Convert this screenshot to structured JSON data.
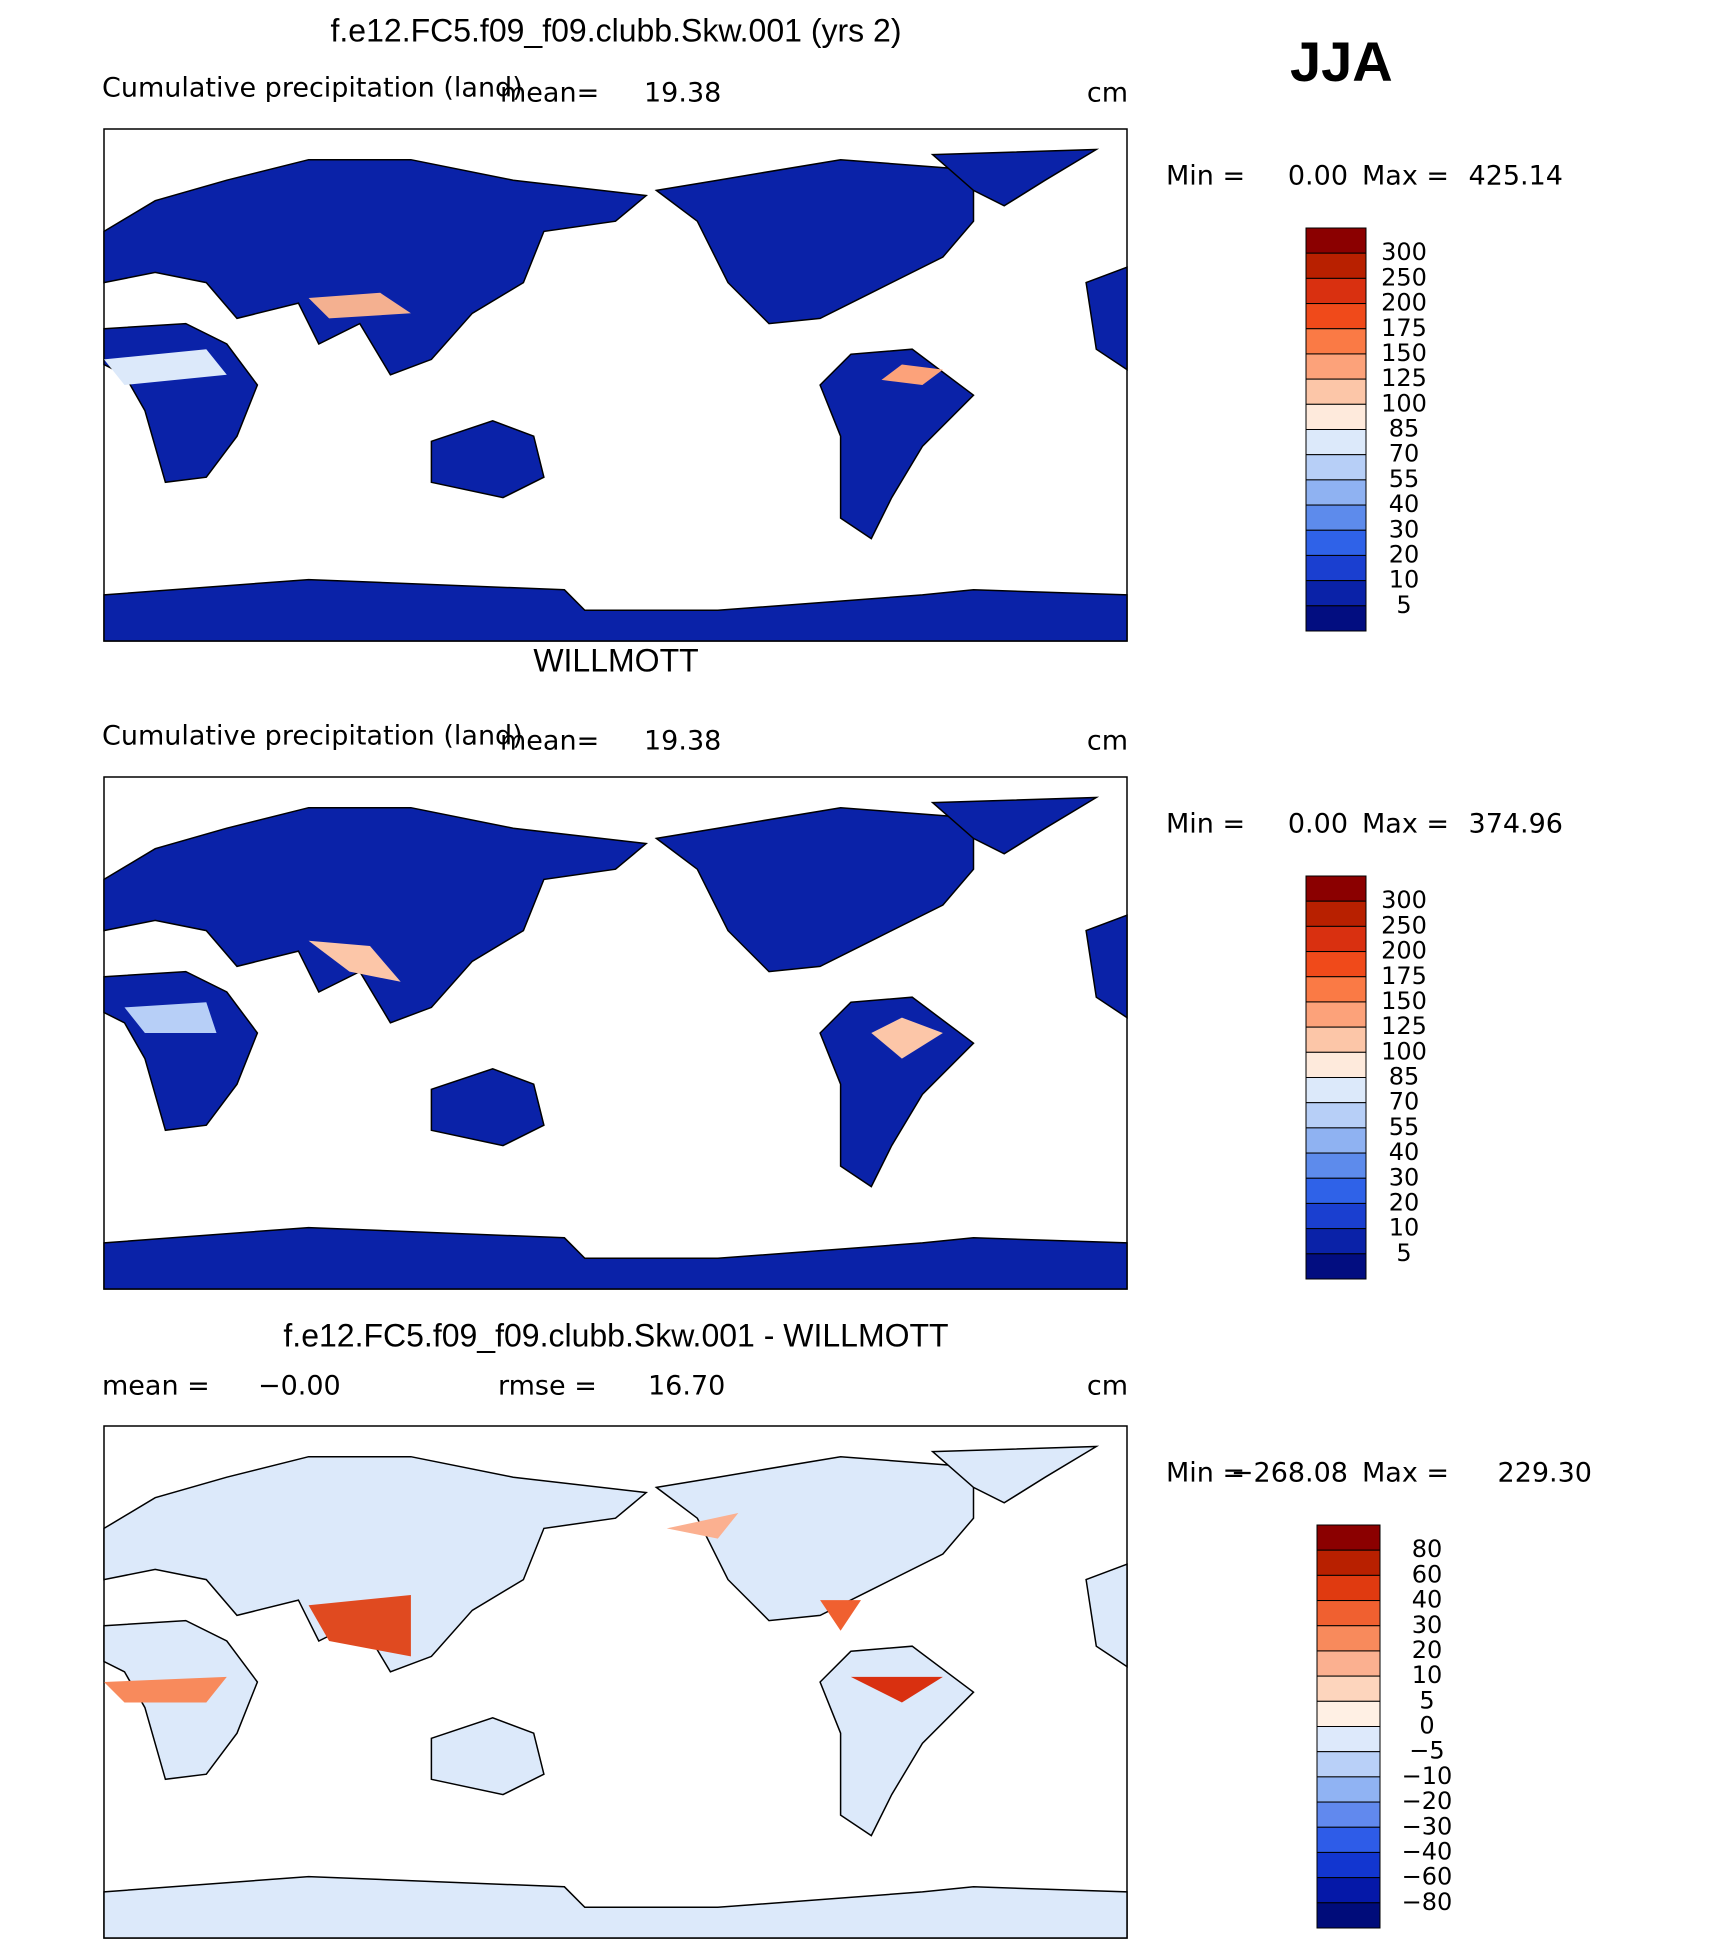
{
  "header": {
    "season": "JJA"
  },
  "panels": [
    {
      "title": "f.e12.FC5.f09_f09.clubb.Skw.001 (yrs 2)",
      "subtitle": "Cumulative precipitation (land)",
      "mean_label": "mean=",
      "mean": "19.38",
      "unit": "cm",
      "min_label": "Min =",
      "min": "0.00",
      "max_label": "Max =",
      "max": "425.14",
      "colorbar": {
        "labels": [
          "300",
          "250",
          "200",
          "175",
          "150",
          "125",
          "100",
          "85",
          "70",
          "55",
          "40",
          "30",
          "20",
          "10",
          "5"
        ],
        "colors": [
          "#8b0000",
          "#b82000",
          "#d93010",
          "#f04a1a",
          "#fa7a45",
          "#fca27a",
          "#fcc6a8",
          "#feeadc",
          "#dce9fa",
          "#b7cff7",
          "#8fb2f2",
          "#5d8bec",
          "#2f62e8",
          "#1a3fd0",
          "#0a22a8",
          "#020d80"
        ]
      }
    },
    {
      "title": "WILLMOTT",
      "subtitle": "Cumulative precipitation (land)",
      "mean_label": "mean=",
      "mean": "19.38",
      "unit": "cm",
      "min_label": "Min =",
      "min": "0.00",
      "max_label": "Max =",
      "max": "374.96",
      "colorbar": {
        "labels": [
          "300",
          "250",
          "200",
          "175",
          "150",
          "125",
          "100",
          "85",
          "70",
          "55",
          "40",
          "30",
          "20",
          "10",
          "5"
        ],
        "colors": [
          "#8b0000",
          "#b82000",
          "#d93010",
          "#f04a1a",
          "#fa7a45",
          "#fca27a",
          "#fcc6a8",
          "#feeadc",
          "#dce9fa",
          "#b7cff7",
          "#8fb2f2",
          "#5d8bec",
          "#2f62e8",
          "#1a3fd0",
          "#0a22a8",
          "#020d80"
        ]
      }
    },
    {
      "title": "f.e12.FC5.f09_f09.clubb.Skw.001 - WILLMOTT",
      "mean_label": "mean =",
      "mean": "−0.00",
      "rmse_label": "rmse =",
      "rmse": "16.70",
      "unit": "cm",
      "min_label": "Min =",
      "min": "−268.08",
      "max_label": "Max =",
      "max": "229.30",
      "colorbar": {
        "labels": [
          "80",
          "60",
          "40",
          "30",
          "20",
          "10",
          "5",
          "0",
          "−5",
          "−10",
          "−20",
          "−30",
          "−40",
          "−60",
          "−80"
        ],
        "colors": [
          "#8b0000",
          "#b82000",
          "#e03a10",
          "#f06030",
          "#f88a5c",
          "#fbb090",
          "#fdd5bd",
          "#fff0e4",
          "#dde9fb",
          "#b9d0f8",
          "#90b3f3",
          "#6189ee",
          "#2e5ce8",
          "#1236d0",
          "#0518a8",
          "#000c7a"
        ]
      }
    }
  ]
}
